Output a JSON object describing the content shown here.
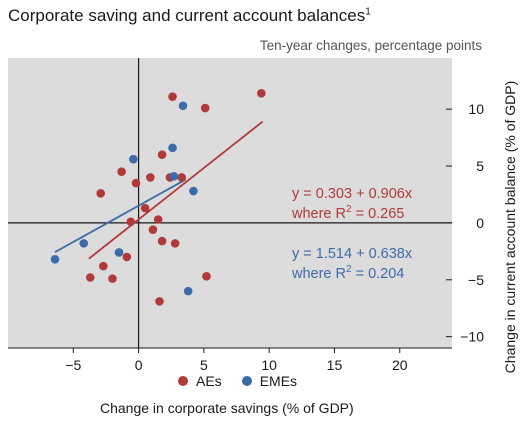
{
  "chart_data": {
    "type": "scatter",
    "title": "Corporate saving and current account balances",
    "title_footnote": "1",
    "subtitle": "Ten-year changes, percentage points",
    "xlabel": "Change in corporate savings (% of GDP)",
    "ylabel": "Change in current account balance (% of GDP)",
    "xlim": [
      -10,
      24
    ],
    "ylim": [
      -11,
      14.5
    ],
    "xticks": [
      "−5",
      "0",
      "5",
      "10",
      "15",
      "20"
    ],
    "xtick_values": [
      -5,
      0,
      5,
      10,
      15,
      20
    ],
    "yticks": [
      "−10",
      "−5",
      "0",
      "5",
      "10"
    ],
    "ytick_values": [
      -10,
      -5,
      0,
      5,
      10
    ],
    "grid": false,
    "legend_placement": "bottom",
    "background": "#dcdcdc",
    "series": [
      {
        "name": "AEs",
        "color": "#b03a3a",
        "points": [
          [
            2.6,
            11.1
          ],
          [
            9.4,
            11.4
          ],
          [
            5.1,
            10.1
          ],
          [
            1.8,
            6.0
          ],
          [
            -1.3,
            4.5
          ],
          [
            -0.2,
            3.5
          ],
          [
            0.9,
            4.0
          ],
          [
            2.4,
            4.0
          ],
          [
            3.3,
            4.0
          ],
          [
            -2.9,
            2.6
          ],
          [
            0.5,
            1.3
          ],
          [
            -0.6,
            0.1
          ],
          [
            1.5,
            0.3
          ],
          [
            1.1,
            -0.6
          ],
          [
            -0.9,
            -3.0
          ],
          [
            1.8,
            -1.6
          ],
          [
            2.8,
            -1.8
          ],
          [
            -2.7,
            -3.8
          ],
          [
            -3.7,
            -4.8
          ],
          [
            -2.0,
            -4.9
          ],
          [
            5.2,
            -4.7
          ],
          [
            1.6,
            -6.9
          ]
        ],
        "fit": {
          "intercept": 0.303,
          "slope": 0.906,
          "x_range": [
            -3.8,
            9.5
          ],
          "r2": 0.265
        }
      },
      {
        "name": "EMEs",
        "color": "#3d6aa8",
        "points": [
          [
            3.4,
            10.3
          ],
          [
            2.6,
            6.6
          ],
          [
            -0.4,
            5.6
          ],
          [
            2.7,
            4.1
          ],
          [
            4.2,
            2.8
          ],
          [
            -4.2,
            -1.8
          ],
          [
            -1.5,
            -2.6
          ],
          [
            -6.4,
            -3.2
          ],
          [
            3.8,
            -6.0
          ]
        ],
        "fit": {
          "intercept": 1.514,
          "slope": 0.638,
          "x_range": [
            -6.4,
            3.6
          ],
          "r2": 0.204
        }
      }
    ],
    "annotations": [
      {
        "series": "AEs",
        "line1": "y = 0.303 + 0.906x",
        "line2_prefix": "where R",
        "line2_sup": "2",
        "line2_suffix": " = 0.265"
      },
      {
        "series": "EMEs",
        "line1": "y = 1.514 + 0.638x",
        "line2_prefix": "where R",
        "line2_sup": "2",
        "line2_suffix": " = 0.204"
      }
    ]
  }
}
